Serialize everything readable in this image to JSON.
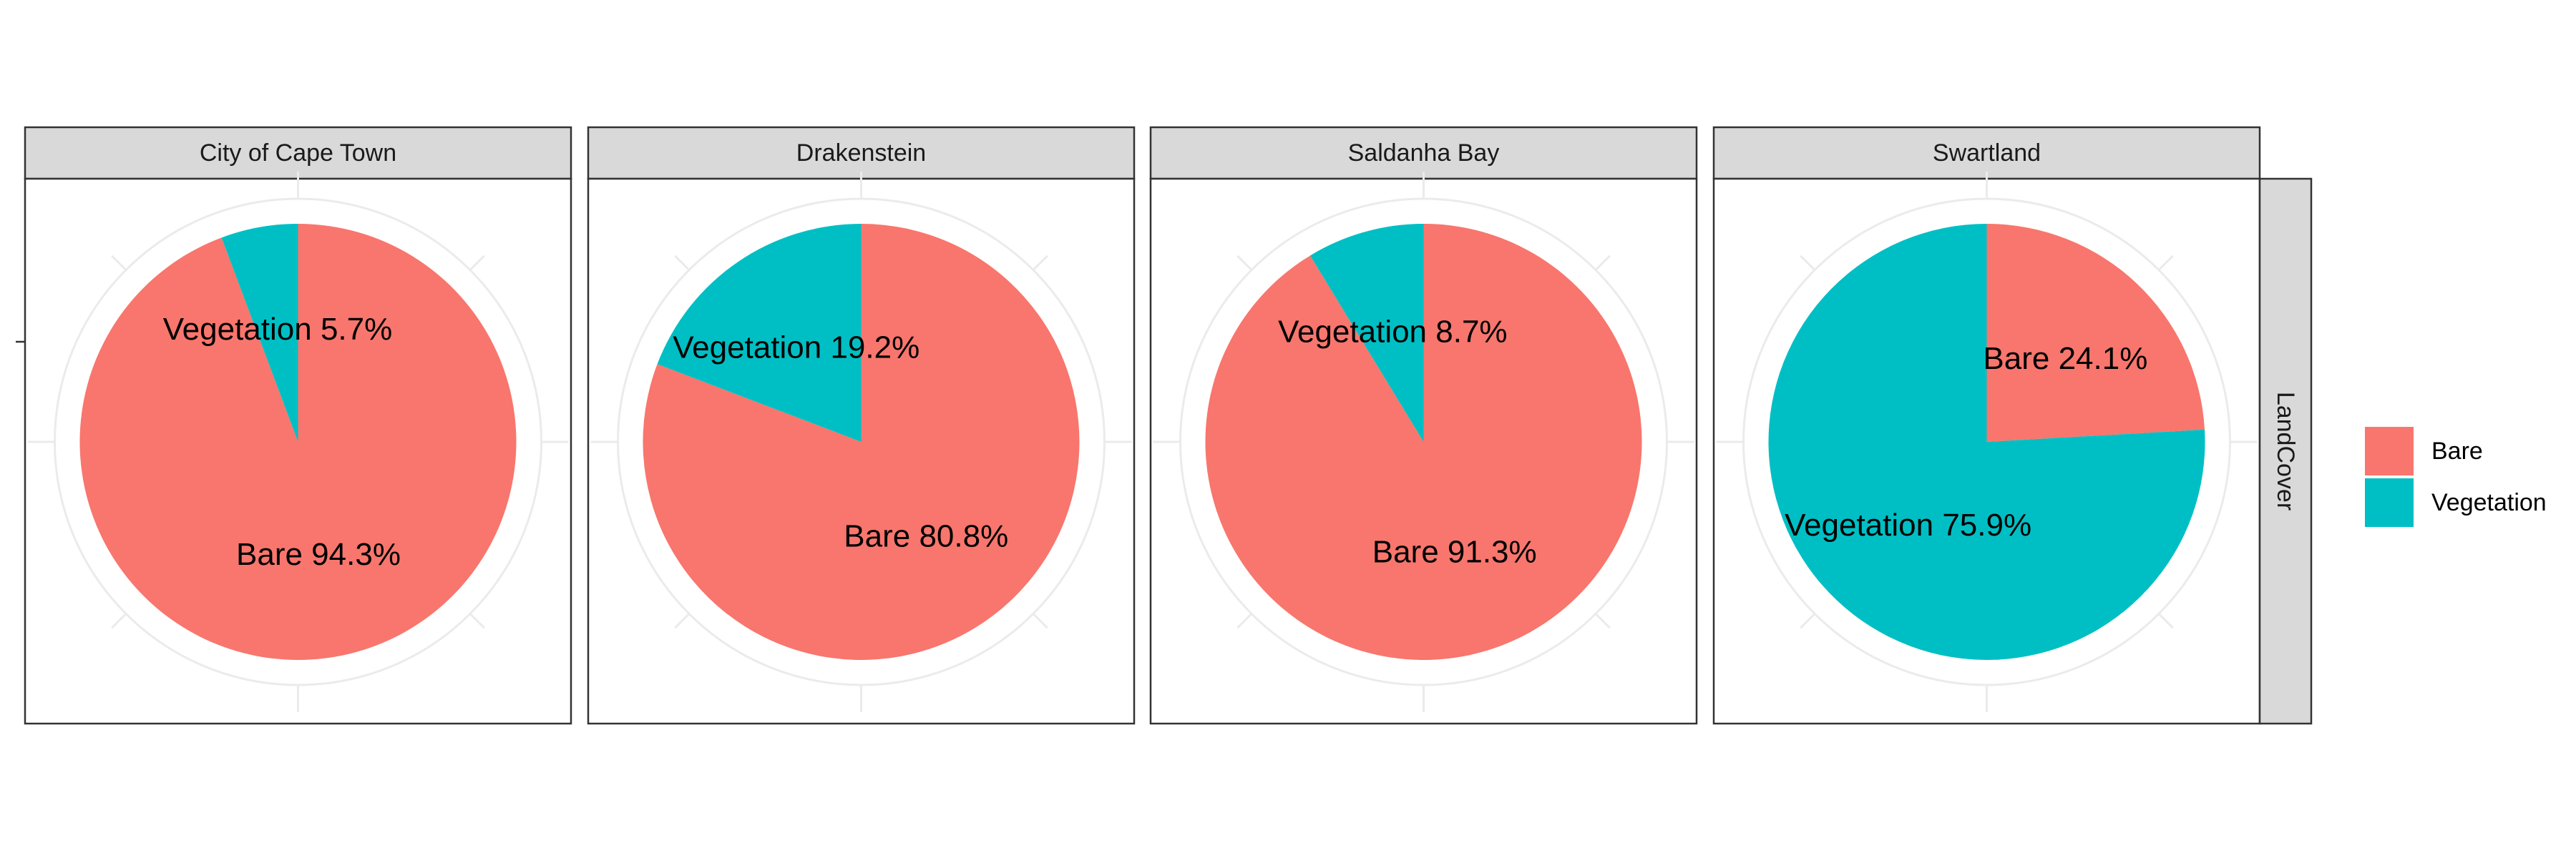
{
  "chart_data": {
    "type": "pie",
    "facet_row_label": "LandCover",
    "categories": [
      "Bare",
      "Vegetation"
    ],
    "colors": {
      "Bare": "#F8766D",
      "Vegetation": "#00BFC4"
    },
    "legend": {
      "position": "right",
      "entries": [
        "Bare",
        "Vegetation"
      ]
    },
    "grid": true,
    "facets": [
      {
        "name": "City of Cape Town",
        "values": [
          94.3,
          5.7
        ],
        "labels": [
          "Bare 94.3%",
          "Vegetation 5.7%"
        ]
      },
      {
        "name": "Drakenstein",
        "values": [
          80.8,
          19.2
        ],
        "labels": [
          "Bare 80.8%",
          "Vegetation 19.2%"
        ]
      },
      {
        "name": "Saldanha Bay",
        "values": [
          91.3,
          8.7
        ],
        "labels": [
          "Bare 91.3%",
          "Vegetation 8.7%"
        ]
      },
      {
        "name": "Swartland",
        "values": [
          24.1,
          75.9
        ],
        "labels": [
          "Bare 24.1%",
          "Vegetation 75.9%"
        ]
      }
    ]
  }
}
